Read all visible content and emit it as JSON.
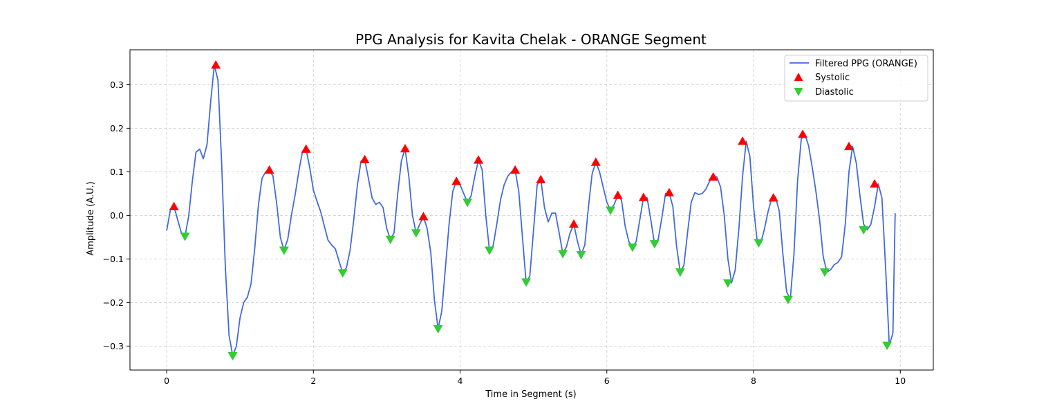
{
  "chart_data": {
    "type": "line",
    "title": "PPG Analysis for Kavita Chelak - ORANGE Segment",
    "xlabel": "Time in Segment (s)",
    "ylabel": "Amplitude (A.U.)",
    "xlim": [
      -0.5,
      10.45
    ],
    "ylim": [
      -0.355,
      0.38
    ],
    "x_ticks": [
      0,
      2,
      4,
      6,
      8,
      10
    ],
    "x_tick_labels": [
      "0",
      "2",
      "4",
      "6",
      "8",
      "10"
    ],
    "y_ticks": [
      -0.3,
      -0.2,
      -0.1,
      0.0,
      0.1,
      0.2,
      0.3
    ],
    "y_tick_labels": [
      "−0.3",
      "−0.2",
      "−0.1",
      "0.0",
      "0.1",
      "0.2",
      "0.3"
    ],
    "grid": true,
    "legend_position": "top-right",
    "colors": {
      "line": "#4169e1",
      "systolic": "#ff0000",
      "diastolic": "#32cd32",
      "grid": "#cccccc"
    },
    "series": [
      {
        "name": "Filtered PPG (ORANGE)",
        "kind": "line",
        "x": [
          0.0,
          0.05,
          0.1,
          0.15,
          0.2,
          0.25,
          0.3,
          0.35,
          0.4,
          0.45,
          0.5,
          0.55,
          0.6,
          0.65,
          0.7,
          0.75,
          0.8,
          0.85,
          0.9,
          0.95,
          1.0,
          1.05,
          1.1,
          1.15,
          1.2,
          1.25,
          1.3,
          1.35,
          1.4,
          1.45,
          1.5,
          1.55,
          1.6,
          1.65,
          1.7,
          1.75,
          1.8,
          1.85,
          1.9,
          1.95,
          2.0,
          2.05,
          2.1,
          2.15,
          2.2,
          2.25,
          2.3,
          2.35,
          2.4,
          2.45,
          2.5,
          2.55,
          2.6,
          2.65,
          2.7,
          2.75,
          2.8,
          2.85,
          2.9,
          2.95,
          3.0,
          3.05,
          3.1,
          3.15,
          3.2,
          3.25,
          3.3,
          3.35,
          3.4,
          3.45,
          3.5,
          3.55,
          3.6,
          3.65,
          3.7,
          3.75,
          3.8,
          3.85,
          3.9,
          3.95,
          4.0,
          4.05,
          4.1,
          4.15,
          4.2,
          4.25,
          4.3,
          4.35,
          4.4,
          4.45,
          4.5,
          4.55,
          4.6,
          4.65,
          4.7,
          4.75,
          4.8,
          4.85,
          4.9,
          4.95,
          5.0,
          5.05,
          5.1,
          5.15,
          5.2,
          5.25,
          5.3,
          5.35,
          5.4,
          5.45,
          5.5,
          5.55,
          5.6,
          5.65,
          5.7,
          5.75,
          5.8,
          5.85,
          5.9,
          5.95,
          6.0,
          6.05,
          6.1,
          6.15,
          6.2,
          6.25,
          6.3,
          6.35,
          6.4,
          6.45,
          6.5,
          6.55,
          6.6,
          6.65,
          6.7,
          6.75,
          6.8,
          6.85,
          6.9,
          6.95,
          7.0,
          7.05,
          7.1,
          7.15,
          7.2,
          7.25,
          7.3,
          7.35,
          7.4,
          7.45,
          7.5,
          7.55,
          7.6,
          7.65,
          7.7,
          7.75,
          7.8,
          7.85,
          7.9,
          7.95,
          8.0,
          8.05,
          8.1,
          8.15,
          8.2,
          8.25,
          8.3,
          8.35,
          8.4,
          8.45,
          8.5,
          8.55,
          8.6,
          8.65,
          8.7,
          8.75,
          8.8,
          8.85,
          8.9,
          8.95,
          9.0,
          9.05,
          9.1,
          9.15,
          9.2,
          9.25,
          9.3,
          9.35,
          9.4,
          9.45,
          9.5,
          9.55,
          9.6,
          9.65,
          9.7,
          9.75,
          9.8,
          9.85,
          9.9,
          9.93
        ],
        "y": [
          -0.035,
          0.012,
          0.02,
          -0.01,
          -0.04,
          -0.048,
          -0.002,
          0.078,
          0.145,
          0.152,
          0.13,
          0.162,
          0.26,
          0.345,
          0.31,
          0.12,
          -0.12,
          -0.275,
          -0.322,
          -0.3,
          -0.235,
          -0.2,
          -0.188,
          -0.157,
          -0.077,
          0.022,
          0.085,
          0.1,
          0.104,
          0.09,
          0.028,
          -0.05,
          -0.08,
          -0.055,
          0.0,
          0.046,
          0.1,
          0.145,
          0.152,
          0.11,
          0.058,
          0.032,
          0.008,
          -0.025,
          -0.057,
          -0.068,
          -0.077,
          -0.105,
          -0.132,
          -0.12,
          -0.08,
          -0.01,
          0.07,
          0.125,
          0.128,
          0.085,
          0.04,
          0.025,
          0.03,
          0.018,
          -0.03,
          -0.055,
          -0.04,
          0.05,
          0.125,
          0.153,
          0.09,
          0.0,
          -0.04,
          -0.02,
          -0.003,
          -0.03,
          -0.085,
          -0.195,
          -0.26,
          -0.22,
          -0.12,
          -0.02,
          0.055,
          0.078,
          0.07,
          0.05,
          0.03,
          0.045,
          0.09,
          0.127,
          0.105,
          0.0,
          -0.08,
          -0.07,
          -0.02,
          0.035,
          0.07,
          0.09,
          0.1,
          0.104,
          0.055,
          -0.05,
          -0.153,
          -0.14,
          -0.035,
          0.07,
          0.082,
          0.018,
          -0.015,
          0.005,
          0.005,
          -0.04,
          -0.088,
          -0.072,
          -0.04,
          -0.02,
          -0.06,
          -0.09,
          -0.068,
          0.02,
          0.095,
          0.122,
          0.1,
          0.065,
          0.03,
          0.012,
          0.025,
          0.046,
          0.035,
          -0.025,
          -0.06,
          -0.073,
          -0.06,
          -0.01,
          0.041,
          0.04,
          -0.01,
          -0.065,
          -0.055,
          -0.005,
          0.05,
          0.052,
          0.02,
          -0.07,
          -0.13,
          -0.115,
          -0.04,
          0.03,
          0.052,
          0.048,
          0.05,
          0.06,
          0.078,
          0.09,
          0.088,
          0.065,
          0.0,
          -0.1,
          -0.155,
          -0.125,
          -0.03,
          0.09,
          0.17,
          0.135,
          0.02,
          -0.06,
          -0.063,
          -0.03,
          0.01,
          0.04,
          0.042,
          0.01,
          -0.09,
          -0.175,
          -0.193,
          -0.09,
          0.08,
          0.175,
          0.186,
          0.16,
          0.11,
          0.055,
          -0.01,
          -0.095,
          -0.13,
          -0.125,
          -0.113,
          -0.108,
          -0.095,
          -0.02,
          0.1,
          0.158,
          0.12,
          0.045,
          -0.02,
          -0.033,
          -0.02,
          0.02,
          0.072,
          0.04,
          -0.12,
          -0.298,
          -0.27,
          0.005
        ]
      },
      {
        "name": "Systolic",
        "kind": "marker",
        "marker": "triangle-up",
        "x": [
          0.1,
          0.67,
          1.4,
          1.9,
          2.7,
          3.25,
          3.5,
          3.95,
          4.25,
          4.75,
          5.1,
          5.55,
          5.85,
          6.15,
          6.5,
          6.85,
          7.45,
          7.85,
          8.27,
          8.67,
          9.3,
          9.65
        ],
        "y": [
          0.02,
          0.345,
          0.104,
          0.152,
          0.128,
          0.153,
          -0.003,
          0.078,
          0.127,
          0.104,
          0.082,
          -0.02,
          0.122,
          0.046,
          0.041,
          0.052,
          0.088,
          0.17,
          0.04,
          0.186,
          0.158,
          0.072
        ]
      },
      {
        "name": "Diastolic",
        "kind": "marker",
        "marker": "triangle-down",
        "x": [
          0.25,
          0.9,
          1.6,
          2.4,
          3.05,
          3.4,
          3.7,
          4.1,
          4.4,
          4.9,
          5.4,
          5.65,
          6.05,
          6.35,
          6.65,
          7.0,
          7.65,
          8.07,
          8.47,
          8.97,
          9.5,
          9.82
        ],
        "y": [
          -0.048,
          -0.322,
          -0.08,
          -0.132,
          -0.055,
          -0.04,
          -0.26,
          0.03,
          -0.08,
          -0.153,
          -0.088,
          -0.09,
          0.012,
          -0.073,
          -0.065,
          -0.13,
          -0.155,
          -0.063,
          -0.193,
          -0.13,
          -0.033,
          -0.298
        ]
      }
    ]
  }
}
